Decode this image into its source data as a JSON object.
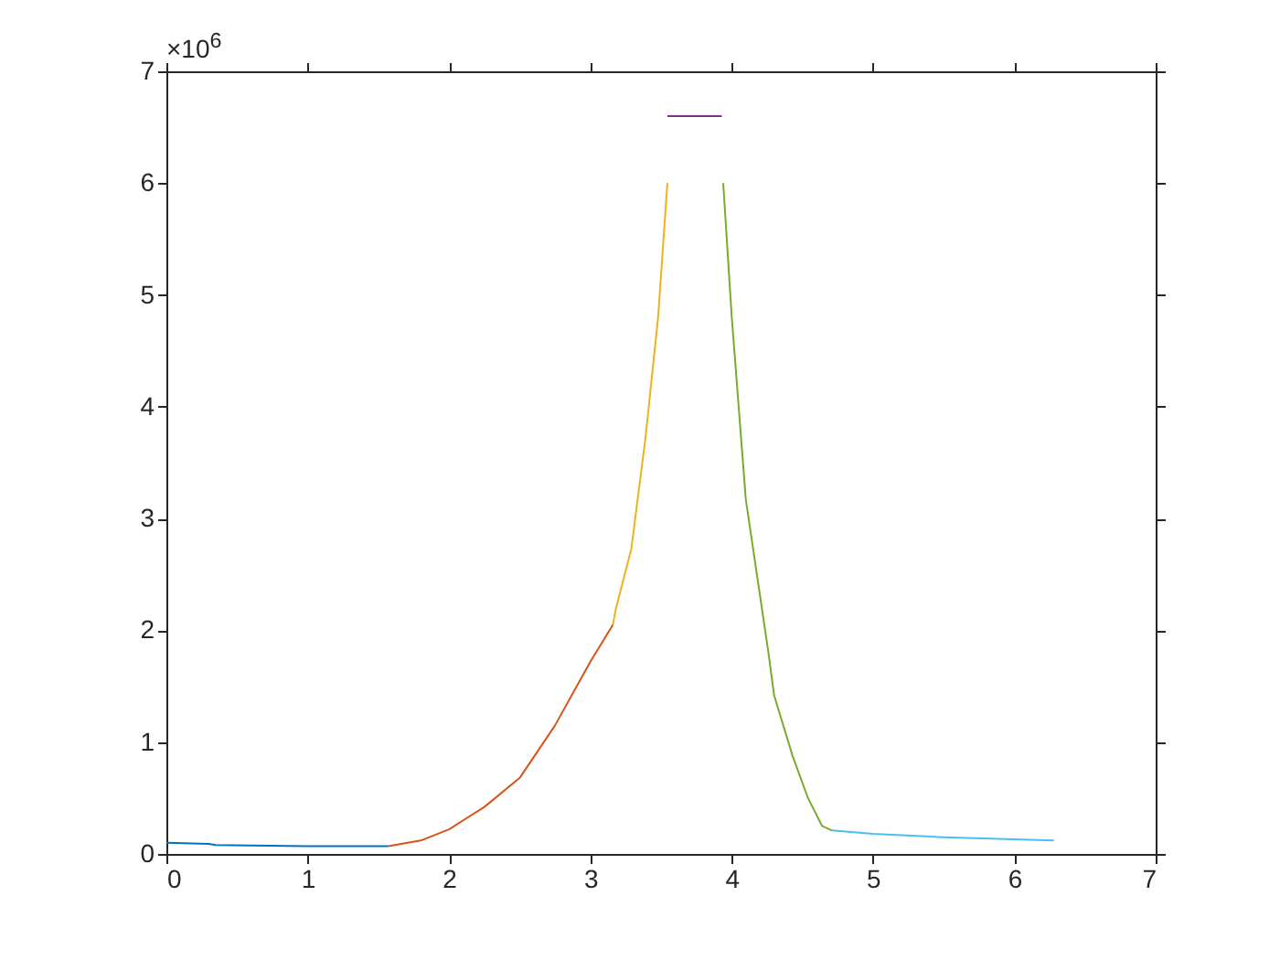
{
  "chart_data": {
    "type": "line",
    "annotations": [
      "×10$^{6}$"
    ],
    "xlim": [
      0,
      7
    ],
    "xticks": [
      0,
      1,
      2,
      3,
      4,
      5,
      6,
      7
    ],
    "ylim": [
      0,
      7
    ],
    "yticks": [
      0,
      1,
      2,
      3,
      4,
      5,
      6,
      7
    ],
    "grid": false,
    "series": [
      {
        "color": "#0072bd",
        "x": [
          0,
          0.3,
          0.35,
          1.0,
          1.57
        ],
        "values": [
          0.1,
          0.09,
          0.08,
          0.07,
          0.07
        ]
      },
      {
        "color": "#d95319",
        "x": [
          1.57,
          1.8,
          2.0,
          2.25,
          2.5,
          2.75,
          3.0,
          3.16
        ],
        "values": [
          0.07,
          0.12,
          0.22,
          0.42,
          0.68,
          1.15,
          1.72,
          2.05
        ]
      },
      {
        "color": "#edb120",
        "x": [
          3.16,
          3.18,
          3.29,
          3.39,
          3.48,
          3.545
        ],
        "values": [
          2.05,
          2.19,
          2.73,
          3.72,
          4.81,
          6.0
        ]
      },
      {
        "color": "#7e2f8e",
        "x": [
          3.545,
          3.93
        ],
        "values": [
          6.6,
          6.6
        ]
      },
      {
        "color": "#77ac30",
        "x": [
          3.94,
          4.0,
          4.1,
          4.26,
          4.3,
          4.43,
          4.54,
          4.64,
          4.71
        ],
        "values": [
          6.0,
          4.81,
          3.17,
          1.8,
          1.42,
          0.88,
          0.5,
          0.25,
          0.21
        ]
      },
      {
        "color": "#4dbeee",
        "x": [
          4.71,
          5.0,
          5.5,
          6.0,
          6.28
        ],
        "values": [
          0.21,
          0.18,
          0.15,
          0.13,
          0.12
        ]
      }
    ]
  }
}
